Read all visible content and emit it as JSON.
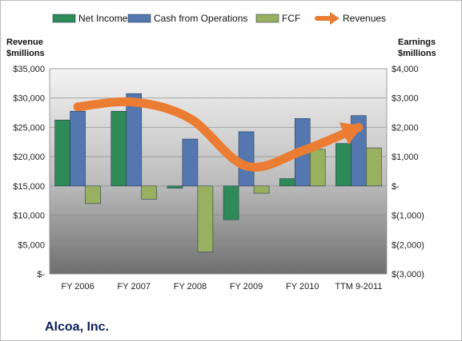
{
  "company_name": "Alcoa, Inc.",
  "chart_data": {
    "type": "bar",
    "categories": [
      "FY 2006",
      "FY 2007",
      "FY 2008",
      "FY 2009",
      "FY 2010",
      "TTM 9-2011"
    ],
    "y_left": {
      "title_line1": "Revenue",
      "title_line2": "$millions",
      "range": [
        0,
        35000
      ],
      "tick_labels": [
        "$-",
        "$5,000",
        "$10,000",
        "$15,000",
        "$20,000",
        "$25,000",
        "$30,000",
        "$35,000"
      ]
    },
    "y_right": {
      "title_line1": "Earnings",
      "title_line2": "$millions",
      "range": [
        -3000,
        4000
      ],
      "tick_labels": [
        "$(3,000)",
        "$(2,000)",
        "$(1,000)",
        "$-",
        "$1,000",
        "$2,000",
        "$3,000",
        "$4,000"
      ]
    },
    "series": [
      {
        "name": "Net Income",
        "type": "bar",
        "axis": "right",
        "color": "#2e8b57",
        "values": [
          2250,
          2550,
          -75,
          -1150,
          250,
          1450
        ]
      },
      {
        "name": "Cash from Operations",
        "type": "bar",
        "axis": "right",
        "color": "#5577b0",
        "values": [
          2550,
          3150,
          1600,
          1850,
          2300,
          2400
        ]
      },
      {
        "name": "FCF",
        "type": "bar",
        "axis": "right",
        "color": "#98b060",
        "values": [
          -600,
          -450,
          -2250,
          -250,
          1250,
          1300
        ]
      },
      {
        "name": "Revenues",
        "type": "line",
        "axis": "left",
        "color": "#ea7d33",
        "values": [
          28500,
          29300,
          26500,
          18400,
          21000,
          25000
        ]
      }
    ],
    "legend_position": "top",
    "grid": true
  }
}
